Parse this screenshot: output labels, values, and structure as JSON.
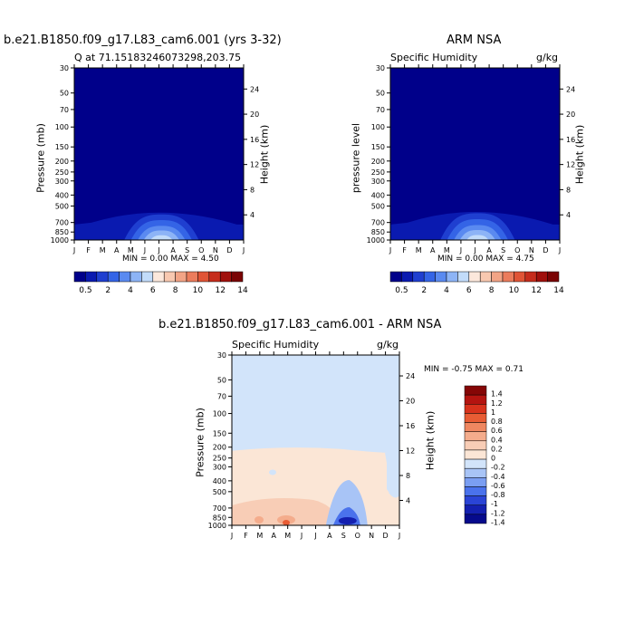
{
  "colors": {
    "navy": "#00008a",
    "blues": [
      "#00008a",
      "#0a1ab0",
      "#1f3fd0",
      "#3464e6",
      "#5a8af0",
      "#8db4f6",
      "#c2dcfa"
    ],
    "diff_scale": [
      "#060a8c",
      "#1420b0",
      "#2a44d6",
      "#4a72ec",
      "#7a9ef2",
      "#a8c4f6",
      "#d2e4fa",
      "#fbe6d6",
      "#f8cdb6",
      "#f4ac8c",
      "#ef8760",
      "#e85c34",
      "#d8321c",
      "#b41410",
      "#850606"
    ],
    "abs_scale": [
      "#00008a",
      "#0a1ab0",
      "#1f3fd0",
      "#3464e6",
      "#5a8af0",
      "#8db4f6",
      "#c2dcfa",
      "#fce8dc",
      "#f8c8b0",
      "#f2a486",
      "#eb7c5c",
      "#e05436",
      "#c62c1c",
      "#a0100c",
      "#7a0404"
    ]
  },
  "panel1": {
    "title": "b.e21.B1850.f09_g17.L83_cam6.001 (yrs 3-32)",
    "left_label": "Q at 71.15183246073298,203.75",
    "ylabel": "Pressure (mb)",
    "ylabel_right": "Height (km)",
    "minmax": "MIN =    0.00 MAX =    4.50",
    "colorbar_ticks": [
      "0.5",
      "2",
      "4",
      "6",
      "8",
      "10",
      "12",
      "14"
    ]
  },
  "panel2": {
    "title": "ARM NSA",
    "left_label": "Specific Humidity",
    "right_label": "g/kg",
    "ylabel": "pressure level",
    "ylabel_right": "Height (km)",
    "minmax": "MIN =    0.00 MAX =    4.75",
    "colorbar_ticks": [
      "0.5",
      "2",
      "4",
      "6",
      "8",
      "10",
      "12",
      "14"
    ]
  },
  "panel3": {
    "title": "b.e21.B1850.f09_g17.L83_cam6.001 - ARM NSA",
    "left_label": "Specific Humidity",
    "right_label": "g/kg",
    "ylabel": "Pressure (mb)",
    "ylabel_right": "Height (km)",
    "minmax": "MIN =   -0.75 MAX =    0.71",
    "colorbar_labels": [
      "1.4",
      "1.2",
      "1",
      "0.8",
      "0.6",
      "0.4",
      "0.2",
      "0",
      "-0.2",
      "-0.4",
      "-0.6",
      "-0.8",
      "-1",
      "-1.2",
      "-1.4"
    ]
  },
  "chart_data": [
    {
      "type": "heatmap",
      "title": "b.e21.B1850.f09_g17.L83_cam6.001 (yrs 3-32)",
      "subtitle": "Q at 71.15183246073298,203.75",
      "ylabel": "Pressure (mb)",
      "ylabel_right": "Height (km)",
      "x_ticks": [
        "J",
        "F",
        "M",
        "A",
        "M",
        "J",
        "J",
        "A",
        "S",
        "O",
        "N",
        "D",
        "J"
      ],
      "y_ticks_pressure": [
        30,
        50,
        70,
        100,
        150,
        200,
        250,
        300,
        400,
        500,
        700,
        850,
        1000
      ],
      "y_ticks_height": [
        24,
        20,
        16,
        12,
        8,
        4
      ],
      "min": 0.0,
      "max": 4.5,
      "colorbar_levels": [
        0.5,
        2,
        4,
        6,
        8,
        10,
        12,
        14
      ]
    },
    {
      "type": "heatmap",
      "title": "ARM NSA",
      "subtitle": "Specific Humidity",
      "units": "g/kg",
      "ylabel": "pressure level",
      "ylabel_right": "Height (km)",
      "x_ticks": [
        "J",
        "F",
        "M",
        "A",
        "M",
        "J",
        "J",
        "A",
        "S",
        "O",
        "N",
        "D",
        "J"
      ],
      "y_ticks_pressure": [
        30,
        50,
        70,
        100,
        150,
        200,
        250,
        300,
        400,
        500,
        700,
        850,
        1000
      ],
      "y_ticks_height": [
        24,
        20,
        16,
        12,
        8,
        4
      ],
      "min": 0.0,
      "max": 4.75,
      "colorbar_levels": [
        0.5,
        2,
        4,
        6,
        8,
        10,
        12,
        14
      ]
    },
    {
      "type": "heatmap",
      "title": "b.e21.B1850.f09_g17.L83_cam6.001 - ARM NSA",
      "subtitle": "Specific Humidity",
      "units": "g/kg",
      "ylabel": "Pressure (mb)",
      "ylabel_right": "Height (km)",
      "x_ticks": [
        "J",
        "F",
        "M",
        "A",
        "M",
        "J",
        "J",
        "A",
        "S",
        "O",
        "N",
        "D",
        "J"
      ],
      "y_ticks_pressure": [
        30,
        50,
        70,
        100,
        150,
        200,
        250,
        300,
        400,
        500,
        700,
        850,
        1000
      ],
      "y_ticks_height": [
        24,
        20,
        16,
        12,
        8,
        4
      ],
      "min": -0.75,
      "max": 0.71,
      "colorbar_levels": [
        -1.4,
        -1.2,
        -1,
        -0.8,
        -0.6,
        -0.4,
        -0.2,
        0,
        0.2,
        0.4,
        0.6,
        0.8,
        1,
        1.2,
        1.4
      ]
    }
  ]
}
